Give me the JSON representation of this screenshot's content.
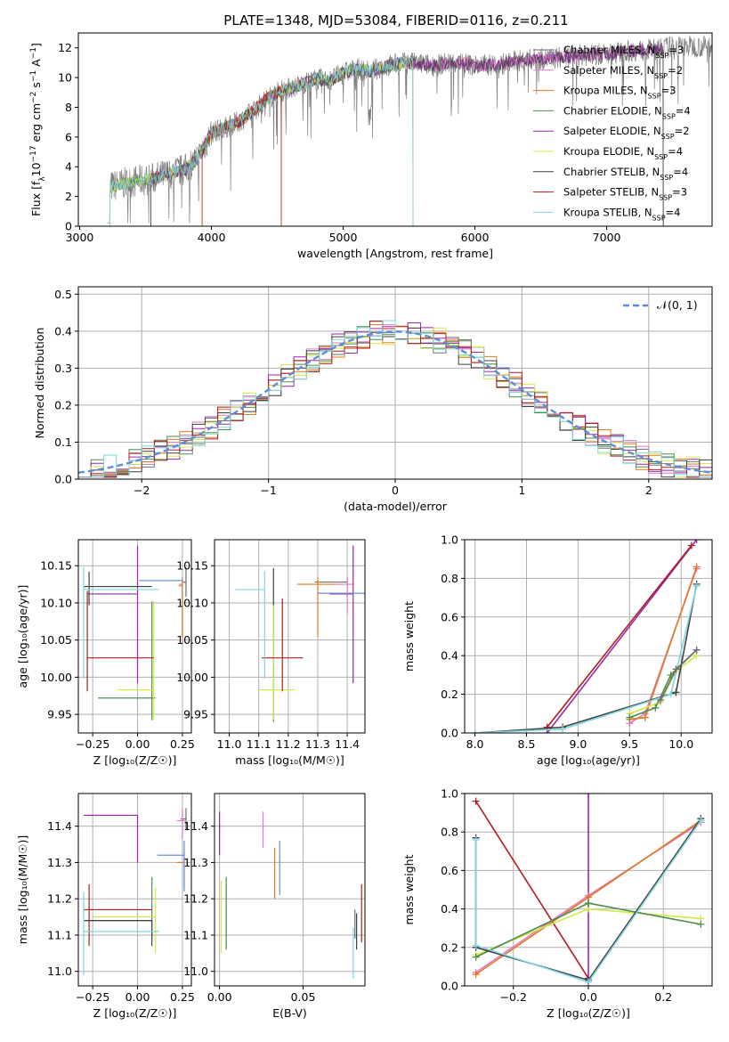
{
  "title": "PLATE=1348, MJD=53084, FIBERID=0116, z=0.211",
  "models": [
    {
      "name": "Chabrier MILES",
      "nssp": "3",
      "color": "#6e6e6e"
    },
    {
      "name": "Salpeter MILES",
      "nssp": "2",
      "color": "#e377c2"
    },
    {
      "name": "Kroupa MILES",
      "nssp": "3",
      "color": "#e07a1f"
    },
    {
      "name": "Chabrier ELODIE",
      "nssp": "4",
      "color": "#4c8c4a"
    },
    {
      "name": "Salpeter ELODIE",
      "nssp": "2",
      "color": "#9b27b0"
    },
    {
      "name": "Kroupa ELODIE",
      "nssp": "4",
      "color": "#d4e84a"
    },
    {
      "name": "Chabrier STELIB",
      "nssp": "4",
      "color": "#404040"
    },
    {
      "name": "Salpeter STELIB",
      "nssp": "3",
      "color": "#b01c1c"
    },
    {
      "name": "Kroupa STELIB",
      "nssp": "4",
      "color": "#7fd6df"
    }
  ],
  "legend_prefix": "N",
  "legend_sub": "SSP",
  "colors": {
    "data": "#7f7f7f",
    "cyan": "#66cfd8",
    "blue": "#6a8fd6",
    "grid": "#b0b0b0",
    "gauss": "#5b8fd9"
  },
  "chart_data": [
    {
      "id": "spectrum",
      "type": "line",
      "xlabel": "wavelength [Angstrom, rest frame]",
      "ylabel_parts": [
        "Flux [f",
        "λ",
        "10",
        "−17",
        " erg cm",
        "−2",
        " s",
        "−1",
        " A",
        "−1",
        "]"
      ],
      "xlim": [
        2990,
        7800
      ],
      "ylim": [
        0,
        13
      ],
      "xticks": [
        3000,
        4000,
        5000,
        6000,
        7000
      ],
      "yticks": [
        0,
        2,
        4,
        6,
        8,
        10,
        12
      ],
      "continuum_x": [
        3210,
        3300,
        3400,
        3500,
        3600,
        3700,
        3800,
        3900,
        4000,
        4100,
        4200,
        4300,
        4400,
        4500,
        4600,
        4700,
        4800,
        4900,
        5000,
        5100,
        5200,
        5300,
        5400,
        5500,
        5600,
        5700,
        5800,
        5900,
        6000,
        6200,
        6400,
        6600,
        6800,
        7000,
        7200,
        7400,
        7500
      ],
      "continuum_y": [
        2.6,
        2.8,
        3.0,
        3.1,
        3.3,
        3.6,
        3.8,
        4.6,
        6.3,
        6.6,
        7.0,
        7.6,
        8.4,
        9.0,
        9.3,
        9.6,
        9.9,
        9.8,
        10.3,
        10.6,
        10.4,
        10.7,
        10.9,
        11.0,
        10.9,
        10.8,
        11.0,
        11.0,
        10.8,
        10.9,
        11.2,
        11.3,
        11.5,
        11.6,
        11.8,
        11.9,
        12.1
      ],
      "fit_windows": [
        [
          3230,
          3540
        ],
        [
          3540,
          3930
        ],
        [
          3930,
          4530
        ],
        [
          4530,
          5530
        ],
        [
          5530,
          7430
        ]
      ]
    },
    {
      "id": "residuals",
      "type": "step",
      "xlabel": "(data-model)/error",
      "ylabel": "Normed distribution",
      "xlim": [
        -2.5,
        2.5
      ],
      "ylim": [
        0,
        0.52
      ],
      "xticks": [
        -2,
        -1,
        0,
        1,
        2
      ],
      "yticks": [
        0.0,
        0.1,
        0.2,
        0.3,
        0.4,
        0.5
      ],
      "legend": "𝒩(0, 1)",
      "bin_width": 0.1
    },
    {
      "id": "age-vs-Z",
      "type": "errorbar",
      "xlabel": "Z [log₁₀(Z/Z☉)]",
      "ylabel": "age  [log₁₀(age/yr)]",
      "xlim": [
        -0.33,
        0.3
      ],
      "ylim": [
        9.925,
        10.185
      ],
      "xticks": [
        -0.25,
        0.0,
        0.25
      ],
      "yticks": [
        9.95,
        10.0,
        10.05,
        10.1,
        10.15
      ],
      "points": [
        {
          "model": 0,
          "x": 0.27,
          "y": 10.128,
          "xerr": [
            0.02,
            0.0
          ],
          "yerr": [
            0.02,
            0.02
          ]
        },
        {
          "model": 1,
          "x": 0.25,
          "y": 10.125,
          "xerr": [
            0.02,
            0.0
          ],
          "yerr": [
            0.08,
            0.01
          ]
        },
        {
          "model": 2,
          "x": 0.25,
          "y": 10.123,
          "xerr": [
            0.02,
            0.0
          ],
          "yerr": [
            0.07,
            0.01
          ]
        },
        {
          "model": 3,
          "x": 0.08,
          "y": 9.972,
          "xerr": [
            0.3,
            0.02
          ],
          "yerr": [
            0.03,
            0.13
          ]
        },
        {
          "model": 4,
          "x": 0.0,
          "y": 10.112,
          "xerr": [
            0.28,
            0.0
          ],
          "yerr": [
            0.12,
            0.065
          ]
        },
        {
          "model": 5,
          "x": 0.09,
          "y": 9.983,
          "xerr": [
            0.2,
            0.0
          ],
          "yerr": [
            0.04,
            0.12
          ]
        },
        {
          "model": 6,
          "x": -0.27,
          "y": 10.122,
          "xerr": [
            0.03,
            0.35
          ],
          "yerr": [
            0.025,
            0.02
          ]
        },
        {
          "model": 7,
          "x": -0.28,
          "y": 10.026,
          "xerr": [
            0.0,
            0.37
          ],
          "yerr": [
            0.045,
            0.09
          ]
        },
        {
          "model": 8,
          "x": -0.3,
          "y": 10.118,
          "xerr": [
            0.0,
            0.42
          ],
          "yerr": [
            0.12,
            0.03
          ]
        },
        {
          "model": 9,
          "x": 0.14,
          "y": 10.13,
          "xerr": [
            0.13,
            0.11
          ],
          "yerr": [
            0.0,
            0.0
          ],
          "color": "#6a8fd6"
        }
      ]
    },
    {
      "id": "age-vs-mass",
      "type": "errorbar",
      "xlabel": "mass [log₁₀(M/M☉)]",
      "ylabel": "",
      "xlim": [
        10.95,
        11.46
      ],
      "ylim": [
        9.925,
        10.185
      ],
      "xticks": [
        11.0,
        11.1,
        11.2,
        11.3,
        11.4
      ],
      "yticks": [
        9.95,
        10.0,
        10.05,
        10.1,
        10.15
      ],
      "points": [
        {
          "model": 0,
          "x": 11.35,
          "y": 10.128,
          "xerr": [
            0.06,
            0.05
          ],
          "yerr": [
            0.0,
            0.0
          ]
        },
        {
          "model": 1,
          "x": 11.4,
          "y": 10.125,
          "xerr": [
            0.04,
            0.02
          ],
          "yerr": [
            0.04,
            0.01
          ]
        },
        {
          "model": 2,
          "x": 11.3,
          "y": 10.125,
          "xerr": [
            0.07,
            0.06
          ],
          "yerr": [
            0.07,
            0.01
          ]
        },
        {
          "model": 3,
          "x": 11.15,
          "y": 9.97,
          "xerr": [
            0.0,
            0.0
          ],
          "yerr": [
            0.03,
            0.13
          ]
        },
        {
          "model": 4,
          "x": 11.42,
          "y": 10.112,
          "xerr": [
            0.08,
            0.0
          ],
          "yerr": [
            0.12,
            0.065
          ]
        },
        {
          "model": 5,
          "x": 11.15,
          "y": 9.983,
          "xerr": [
            0.05,
            0.07
          ],
          "yerr": [
            0.04,
            0.12
          ]
        },
        {
          "model": 6,
          "x": 11.15,
          "y": 10.122,
          "xerr": [
            0.0,
            0.0
          ],
          "yerr": [
            0.025,
            0.025
          ]
        },
        {
          "model": 7,
          "x": 11.18,
          "y": 10.026,
          "xerr": [
            0.07,
            0.07
          ],
          "yerr": [
            0.045,
            0.08
          ]
        },
        {
          "model": 8,
          "x": 11.12,
          "y": 10.118,
          "xerr": [
            0.1,
            0.0
          ],
          "yerr": [
            0.12,
            0.025
          ]
        },
        {
          "model": 9,
          "x": 11.38,
          "y": 10.113,
          "xerr": [
            0.08,
            0.08
          ],
          "yerr": [
            0.0,
            0.0
          ],
          "color": "#6a8fd6"
        }
      ]
    },
    {
      "id": "mass-weight-vs-age",
      "type": "line",
      "xlabel": "age  [log₁₀(age/yr)]",
      "ylabel": "mass weight",
      "xlim": [
        7.9,
        10.3
      ],
      "ylim": [
        0,
        1
      ],
      "xticks": [
        8.0,
        8.5,
        9.0,
        9.5,
        10.0
      ],
      "yticks": [
        0.0,
        0.2,
        0.4,
        0.6,
        0.8,
        1.0
      ],
      "series": [
        {
          "model": 4,
          "x": [
            8.7,
            10.15
          ],
          "y": [
            0.0,
            1.0
          ]
        },
        {
          "model": 7,
          "x": [
            8.7,
            10.1
          ],
          "y": [
            0.03,
            0.97
          ]
        },
        {
          "model": 1,
          "x": [
            9.5,
            9.65,
            10.15
          ],
          "y": [
            0.05,
            0.1,
            0.85
          ]
        },
        {
          "model": 2,
          "x": [
            9.5,
            9.65,
            10.15
          ],
          "y": [
            0.07,
            0.08,
            0.86
          ]
        },
        {
          "model": 5,
          "x": [
            9.5,
            9.8,
            9.95,
            10.15
          ],
          "y": [
            0.1,
            0.16,
            0.32,
            0.4
          ]
        },
        {
          "model": 3,
          "x": [
            9.5,
            9.75,
            9.9,
            10.15
          ],
          "y": [
            0.08,
            0.13,
            0.3,
            0.43
          ]
        },
        {
          "model": 6,
          "x": [
            8.0,
            8.85,
            9.95,
            10.15
          ],
          "y": [
            0.0,
            0.03,
            0.21,
            0.77
          ]
        },
        {
          "model": 8,
          "x": [
            8.0,
            8.85,
            9.9,
            10.15
          ],
          "y": [
            0.0,
            0.02,
            0.2,
            0.76
          ]
        },
        {
          "model": 0,
          "x": [
            9.8,
            9.95,
            10.15
          ],
          "y": [
            0.17,
            0.33,
            0.43
          ]
        }
      ]
    },
    {
      "id": "mass-vs-Z",
      "type": "errorbar",
      "xlabel": "Z [log₁₀(Z/Z☉)]",
      "ylabel": "mass [log₁₀(M/M☉)]",
      "xlim": [
        -0.33,
        0.3
      ],
      "ylim": [
        10.96,
        11.49
      ],
      "xticks": [
        -0.25,
        0.0,
        0.25
      ],
      "yticks": [
        11.0,
        11.1,
        11.2,
        11.3,
        11.4
      ],
      "points": [
        {
          "model": 0,
          "x": 0.27,
          "y": 11.42,
          "xerr": [
            0.03,
            0.0
          ],
          "yerr": [
            0.03,
            0.03
          ]
        },
        {
          "model": 1,
          "x": 0.25,
          "y": 11.415,
          "xerr": [
            0.03,
            0.02
          ],
          "yerr": [
            0.05,
            0.03
          ]
        },
        {
          "model": 2,
          "x": 0.26,
          "y": 11.3,
          "xerr": [
            0.04,
            0.0
          ],
          "yerr": [
            0.07,
            0.03
          ]
        },
        {
          "model": 3,
          "x": 0.08,
          "y": 11.14,
          "xerr": [
            0.38,
            0.0
          ],
          "yerr": [
            0.05,
            0.12
          ]
        },
        {
          "model": 4,
          "x": 0.0,
          "y": 11.43,
          "xerr": [
            0.3,
            0.0
          ],
          "yerr": [
            0.13,
            0.0
          ]
        },
        {
          "model": 5,
          "x": 0.1,
          "y": 11.15,
          "xerr": [
            0.35,
            0.0
          ],
          "yerr": [
            0.1,
            0.08
          ]
        },
        {
          "model": 6,
          "x": 0.08,
          "y": 11.14,
          "xerr": [
            0.38,
            0.0
          ],
          "yerr": [
            0.07,
            0.0
          ]
        },
        {
          "model": 7,
          "x": -0.27,
          "y": 11.17,
          "xerr": [
            0.03,
            0.35
          ],
          "yerr": [
            0.1,
            0.07
          ]
        },
        {
          "model": 8,
          "x": -0.3,
          "y": 11.11,
          "xerr": [
            0.0,
            0.42
          ],
          "yerr": [
            0.12,
            0.11
          ]
        },
        {
          "model": 9,
          "x": 0.26,
          "y": 11.32,
          "xerr": [
            0.15,
            0.0
          ],
          "yerr": [
            0.1,
            0.04
          ],
          "color": "#6a8fd6"
        }
      ]
    },
    {
      "id": "mass-vs-EBV",
      "type": "errorbar",
      "xlabel": "E(B-V)",
      "ylabel": "",
      "xlim": [
        -0.003,
        0.087
      ],
      "ylim": [
        10.96,
        11.49
      ],
      "xticks": [
        0.0,
        0.05
      ],
      "yticks": [
        11.0,
        11.1,
        11.2,
        11.3,
        11.4
      ],
      "points": [
        {
          "model": 0,
          "x": 0.081,
          "y": 11.14,
          "xerr": [
            0,
            0
          ],
          "yerr": [
            0.05,
            0.03
          ]
        },
        {
          "model": 1,
          "x": 0.026,
          "y": 11.39,
          "xerr": [
            0,
            0
          ],
          "yerr": [
            0.05,
            0.05
          ]
        },
        {
          "model": 2,
          "x": 0.033,
          "y": 11.27,
          "xerr": [
            0,
            0
          ],
          "yerr": [
            0.07,
            0.07
          ]
        },
        {
          "model": 3,
          "x": 0.004,
          "y": 11.16,
          "xerr": [
            0,
            0
          ],
          "yerr": [
            0.1,
            0.1
          ]
        },
        {
          "model": 4,
          "x": 0.0,
          "y": 11.39,
          "xerr": [
            0,
            0
          ],
          "yerr": [
            0.07,
            0.05
          ]
        },
        {
          "model": 5,
          "x": 0.001,
          "y": 11.15,
          "xerr": [
            0,
            0
          ],
          "yerr": [
            0.1,
            0.1
          ]
        },
        {
          "model": 6,
          "x": 0.082,
          "y": 11.11,
          "xerr": [
            0,
            0
          ],
          "yerr": [
            0.05,
            0.05
          ]
        },
        {
          "model": 7,
          "x": 0.085,
          "y": 11.16,
          "xerr": [
            0,
            0
          ],
          "yerr": [
            0.08,
            0.08
          ]
        },
        {
          "model": 8,
          "x": 0.08,
          "y": 11.05,
          "xerr": [
            0,
            0
          ],
          "yerr": [
            0.07,
            0.07
          ]
        },
        {
          "model": 9,
          "x": 0.036,
          "y": 11.29,
          "xerr": [
            0,
            0
          ],
          "yerr": [
            0.08,
            0.07
          ],
          "color": "#6a8fd6"
        }
      ]
    },
    {
      "id": "mass-weight-vs-Z",
      "type": "line",
      "xlabel": "Z [log₁₀(Z/Z☉)]",
      "ylabel": "mass weight",
      "xlim": [
        -0.33,
        0.33
      ],
      "ylim": [
        0,
        1
      ],
      "xticks": [
        -0.2,
        0.0,
        0.2
      ],
      "yticks": [
        0.0,
        0.2,
        0.4,
        0.6,
        0.8,
        1.0
      ],
      "series": [
        {
          "model": 7,
          "x": [
            -0.3,
            0.0
          ],
          "y": [
            0.96,
            0.04
          ]
        },
        {
          "model": 4,
          "x": [
            0.0,
            0.0
          ],
          "y": [
            0.0,
            1.0
          ]
        },
        {
          "model": 1,
          "x": [
            -0.3,
            0.0,
            0.3
          ],
          "y": [
            0.07,
            0.47,
            0.85
          ]
        },
        {
          "model": 2,
          "x": [
            -0.3,
            0.0,
            0.3
          ],
          "y": [
            0.06,
            0.46,
            0.86
          ]
        },
        {
          "model": 5,
          "x": [
            -0.3,
            0.0,
            0.3
          ],
          "y": [
            0.16,
            0.4,
            0.35
          ]
        },
        {
          "model": 3,
          "x": [
            -0.3,
            0.0,
            0.3
          ],
          "y": [
            0.15,
            0.43,
            0.32
          ]
        },
        {
          "model": 6,
          "x": [
            -0.3,
            -0.3,
            0.0,
            0.3
          ],
          "y": [
            0.77,
            0.2,
            0.03,
            0.87
          ]
        },
        {
          "model": 8,
          "x": [
            -0.3,
            -0.3,
            0.0,
            0.3
          ],
          "y": [
            0.76,
            0.21,
            0.02,
            0.86
          ]
        }
      ]
    }
  ]
}
